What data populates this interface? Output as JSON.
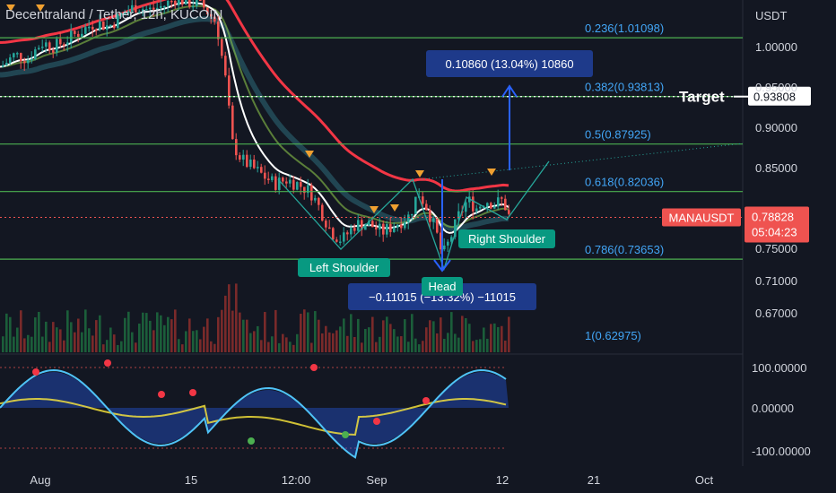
{
  "symbol_title": "Decentraland / Tether, 12h, KUCOIN",
  "price_axis": {
    "currency": "USDT",
    "ticks": [
      {
        "label": "1.00000",
        "value": 1.0
      },
      {
        "label": "0.95000",
        "value": 0.95
      },
      {
        "label": "0.90000",
        "value": 0.9
      },
      {
        "label": "0.85000",
        "value": 0.85
      },
      {
        "label": "0.75000",
        "value": 0.75
      },
      {
        "label": "0.71000",
        "value": 0.71
      },
      {
        "label": "0.67000",
        "value": 0.67
      }
    ]
  },
  "osc_axis": {
    "ticks": [
      "100.00000",
      "0.00000",
      "-100.00000"
    ]
  },
  "time_axis": {
    "labels": [
      "Aug",
      "15",
      "12:00",
      "Sep",
      "12",
      "21",
      "Oct"
    ]
  },
  "fib_levels": [
    {
      "label": "0.236(1.01098)",
      "price": 1.01098
    },
    {
      "label": "0.382(0.93813)",
      "price": 0.93813
    },
    {
      "label": "0.5(0.87925)",
      "price": 0.87925
    },
    {
      "label": "0.618(0.82036)",
      "price": 0.82036
    },
    {
      "label": "0.786(0.73653)",
      "price": 0.73653
    },
    {
      "label": "1(0.62975)",
      "price": 0.62975
    }
  ],
  "target": {
    "label": "Target",
    "price_label": "0.93808",
    "price": 0.93808
  },
  "current": {
    "symbol": "MANAUSDT",
    "price": "0.78828",
    "countdown": "05:04:23"
  },
  "measure_up": {
    "text": "0.10860 (13.04%) 10860"
  },
  "measure_down": {
    "text": "−0.11015 (−13.32%) −11015"
  },
  "annotations": {
    "left_shoulder": "Left Shoulder",
    "head": "Head",
    "right_shoulder": "Right Shoulder"
  },
  "colors": {
    "bg": "#131722",
    "fib": "#4caf50",
    "up": "#26a69a",
    "down": "#ef5350",
    "ema_red": "#f23645",
    "ema_white": "#ffffff",
    "label_green": "#089981",
    "measure_bg": "#1e3a8a",
    "measure_arrow": "#2962ff"
  }
}
